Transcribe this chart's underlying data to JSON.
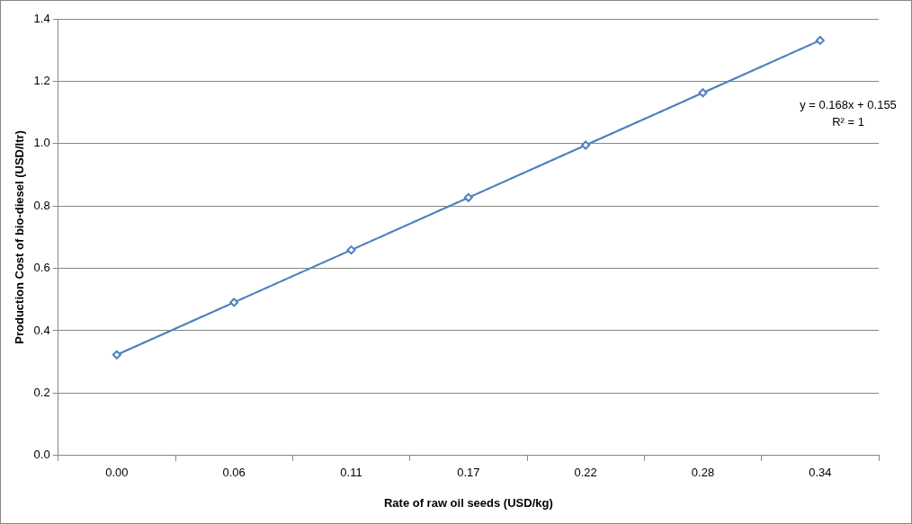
{
  "chart_data": {
    "type": "line",
    "xlabel": "Rate of raw oil seeds (USD/kg)",
    "ylabel": "Production Cost of bio-diesel (USD/ltr)",
    "categories": [
      "0.00",
      "0.06",
      "0.11",
      "0.17",
      "0.22",
      "0.28",
      "0.34"
    ],
    "series": [
      {
        "color": "#4f81bd",
        "values": [
          0.323,
          0.491,
          0.659,
          0.827,
          0.995,
          1.163,
          1.331
        ],
        "marker": "diamond",
        "line_style": "solid"
      },
      {
        "color": "#8db3e2",
        "values": [
          0.323,
          0.491,
          0.659,
          0.827,
          0.995,
          1.163,
          1.331
        ],
        "marker": "none",
        "line_style": "dashed"
      }
    ],
    "ylim": [
      0,
      1.4
    ],
    "yticks": [
      {
        "value": 0,
        "label": "0.0"
      },
      {
        "value": 0.2,
        "label": "0.2"
      },
      {
        "value": 0.4,
        "label": "0.4"
      },
      {
        "value": 0.6,
        "label": "0.6"
      },
      {
        "value": 0.8,
        "label": "0.8"
      },
      {
        "value": 1.0,
        "label": "1.0"
      },
      {
        "value": 1.2,
        "label": "1.2"
      },
      {
        "value": 1.4,
        "label": "1.4"
      }
    ],
    "grid": "y",
    "legend": false,
    "annotations": [
      "y = 0.168x + 0.155",
      "R² = 1"
    ]
  }
}
